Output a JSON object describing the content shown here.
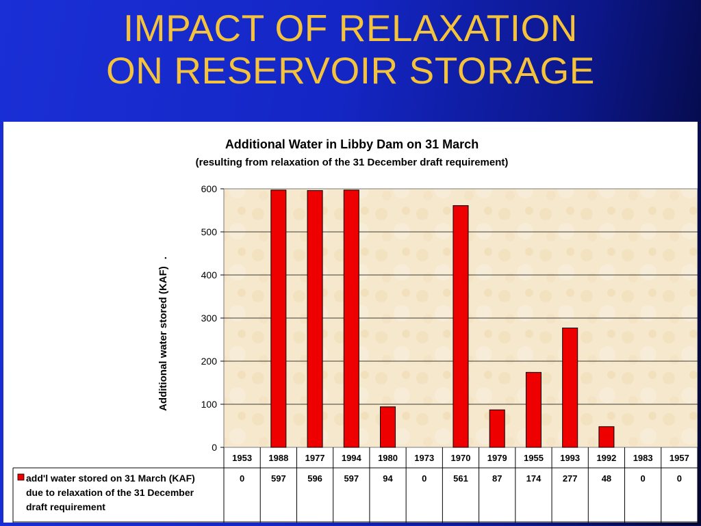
{
  "slide": {
    "title_line1": "IMPACT OF RELAXATION",
    "title_line2": "ON RESERVOIR STORAGE"
  },
  "colors": {
    "bar": "#ee0000",
    "plot_bg": "#f6e8cc",
    "title": "#f5c33b"
  },
  "chart_data": {
    "type": "bar",
    "title": "Additional Water in Libby Dam on 31 March",
    "subtitle": "(resulting from relaxation of the 31 December draft requirement)",
    "ylabel": "Additional water stored (KAF)",
    "ylabel_suffix": ".",
    "xlabel": "",
    "ylim": [
      0,
      600
    ],
    "yticks": [
      "0",
      "100",
      "200",
      "300",
      "400",
      "500",
      "600"
    ],
    "grid": true,
    "categories": [
      "1953",
      "1988",
      "1977",
      "1994",
      "1980",
      "1973",
      "1970",
      "1979",
      "1955",
      "1993",
      "1992",
      "1983",
      "1957"
    ],
    "series": [
      {
        "name_lines": [
          "add'l water stored on 31 March (KAF)",
          "due to relaxation of the 31 December",
          "draft requirement"
        ],
        "values": [
          0,
          597,
          596,
          597,
          94,
          0,
          561,
          87,
          174,
          277,
          48,
          0,
          0
        ],
        "labels": [
          "0",
          "597",
          "596",
          "597",
          "94",
          "0",
          "561",
          "87",
          "174",
          "277",
          "48",
          "0",
          "0"
        ]
      }
    ],
    "legend_placement": "data-table"
  }
}
